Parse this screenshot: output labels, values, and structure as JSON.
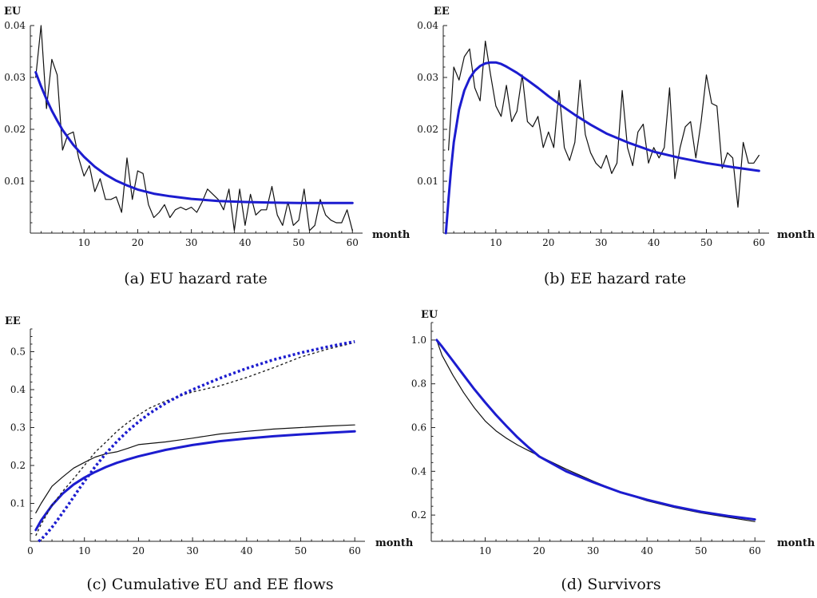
{
  "panels": [
    {
      "caption": "(a) EU hazard rate",
      "chart_data": {
        "type": "line",
        "ylabel": "EU",
        "xlabel": "month",
        "xlim": [
          0,
          61
        ],
        "ylim": [
          0,
          0.04
        ],
        "xticks": [
          10,
          20,
          30,
          40,
          50,
          60
        ],
        "yticks": [
          0.01,
          0.02,
          0.03,
          0.04
        ],
        "ytick_labels": [
          "0.01",
          "0.02",
          "0.03",
          "0.04"
        ],
        "grid": false,
        "series": [
          {
            "style": "empirical",
            "color": "#111111",
            "dash": "solid",
            "width": 1.2,
            "x": [
              1,
              2,
              3,
              4,
              5,
              6,
              7,
              8,
              9,
              10,
              11,
              12,
              13,
              14,
              15,
              16,
              17,
              18,
              19,
              20,
              21,
              22,
              23,
              24,
              25,
              26,
              27,
              28,
              29,
              30,
              31,
              32,
              33,
              34,
              35,
              36,
              37,
              38,
              39,
              40,
              41,
              42,
              43,
              44,
              45,
              46,
              47,
              48,
              49,
              50,
              51,
              52,
              53,
              54,
              55,
              56,
              57,
              58,
              59,
              60
            ],
            "y": [
              0.03,
              0.04,
              0.024,
              0.0335,
              0.0305,
              0.016,
              0.019,
              0.0195,
              0.0145,
              0.011,
              0.013,
              0.008,
              0.0105,
              0.0065,
              0.0065,
              0.007,
              0.004,
              0.0145,
              0.0065,
              0.012,
              0.0115,
              0.0055,
              0.003,
              0.004,
              0.0055,
              0.003,
              0.0045,
              0.005,
              0.0045,
              0.005,
              0.004,
              0.006,
              0.0085,
              0.0075,
              0.0065,
              0.0045,
              0.0085,
              0.0005,
              0.0085,
              0.0015,
              0.0075,
              0.0035,
              0.0045,
              0.0045,
              0.009,
              0.0035,
              0.0015,
              0.006,
              0.0015,
              0.0025,
              0.0085,
              0.0005,
              0.0015,
              0.0065,
              0.0035,
              0.0025,
              0.002,
              0.002,
              0.0045,
              0.0005
            ]
          },
          {
            "style": "model",
            "color": "#1c1ccf",
            "dash": "solid",
            "width": 3,
            "x": [
              1,
              2,
              3,
              4,
              5,
              6,
              8,
              10,
              12,
              14,
              16,
              18,
              20,
              23,
              26,
              30,
              35,
              40,
              45,
              50,
              55,
              60
            ],
            "y": [
              0.031,
              0.0283,
              0.0258,
              0.0236,
              0.0217,
              0.0199,
              0.017,
              0.0147,
              0.0128,
              0.0113,
              0.0101,
              0.0092,
              0.0084,
              0.0076,
              0.0071,
              0.0066,
              0.0062,
              0.006,
              0.0059,
              0.0058,
              0.0058,
              0.0058
            ]
          }
        ]
      }
    },
    {
      "caption": "(b) EE hazard rate",
      "chart_data": {
        "type": "line",
        "ylabel": "EE",
        "xlabel": "month",
        "xlim": [
          0,
          61
        ],
        "ylim": [
          0,
          0.04
        ],
        "xticks": [
          10,
          20,
          30,
          40,
          50,
          60
        ],
        "yticks": [
          0.01,
          0.02,
          0.03,
          0.04
        ],
        "ytick_labels": [
          "0.01",
          "0.02",
          "0.03",
          "0.04"
        ],
        "grid": false,
        "series": [
          {
            "style": "empirical",
            "color": "#111111",
            "dash": "solid",
            "width": 1.2,
            "x": [
              1,
              2,
              3,
              4,
              5,
              6,
              7,
              8,
              9,
              10,
              11,
              12,
              13,
              14,
              15,
              16,
              17,
              18,
              19,
              20,
              21,
              22,
              23,
              24,
              25,
              26,
              27,
              28,
              29,
              30,
              31,
              32,
              33,
              34,
              35,
              36,
              37,
              38,
              39,
              40,
              41,
              42,
              43,
              44,
              45,
              46,
              47,
              48,
              49,
              50,
              51,
              52,
              53,
              54,
              55,
              56,
              57,
              58,
              59,
              60
            ],
            "y": [
              0.016,
              0.032,
              0.0295,
              0.034,
              0.0355,
              0.028,
              0.0255,
              0.037,
              0.0305,
              0.0245,
              0.0225,
              0.0285,
              0.0215,
              0.0235,
              0.0305,
              0.0215,
              0.0205,
              0.0225,
              0.0165,
              0.0195,
              0.0165,
              0.0275,
              0.0165,
              0.014,
              0.0175,
              0.0295,
              0.019,
              0.0155,
              0.0135,
              0.0125,
              0.015,
              0.0115,
              0.0135,
              0.0275,
              0.0165,
              0.013,
              0.0195,
              0.021,
              0.0135,
              0.0165,
              0.0145,
              0.0165,
              0.028,
              0.0105,
              0.0165,
              0.0205,
              0.0215,
              0.0145,
              0.0215,
              0.0305,
              0.025,
              0.0245,
              0.0125,
              0.0155,
              0.0145,
              0.005,
              0.0175,
              0.0135,
              0.0135,
              0.015
            ]
          },
          {
            "style": "model",
            "color": "#1c1ccf",
            "dash": "solid",
            "width": 3,
            "x": [
              0.5,
              1,
              1.5,
              2,
              3,
              4,
              5,
              6,
              7,
              8,
              9,
              10,
              11,
              12,
              14,
              16,
              18,
              20,
              22,
              25,
              28,
              31,
              35,
              40,
              45,
              50,
              55,
              60
            ],
            "y": [
              0,
              0.0065,
              0.0125,
              0.0175,
              0.0238,
              0.0275,
              0.0298,
              0.0313,
              0.0322,
              0.0327,
              0.0329,
              0.0329,
              0.0326,
              0.0321,
              0.0309,
              0.0295,
              0.028,
              0.0264,
              0.0249,
              0.0228,
              0.0209,
              0.0192,
              0.0175,
              0.0157,
              0.0145,
              0.0135,
              0.0127,
              0.012
            ]
          }
        ]
      }
    },
    {
      "caption": "(c) Cumulative EU and EE flows",
      "chart_data": {
        "type": "line",
        "ylabel": "EE",
        "xlabel": "month",
        "xlim": [
          0,
          61
        ],
        "ylim": [
          0,
          0.56
        ],
        "xticks": [
          0,
          10,
          20,
          30,
          40,
          50,
          60
        ],
        "yticks": [
          0.1,
          0.2,
          0.3,
          0.4,
          0.5
        ],
        "ytick_labels": [
          "0.1",
          "0.2",
          "0.3",
          "0.4",
          "0.5"
        ],
        "grid": false,
        "series": [
          {
            "style": "empirical-EU",
            "color": "#111111",
            "dash": "solid",
            "width": 1.2,
            "x": [
              1,
              2,
              4,
              6,
              8,
              10,
              12,
              14,
              16,
              18,
              20,
              22,
              25,
              28,
              30,
              35,
              40,
              45,
              50,
              55,
              60
            ],
            "y": [
              0.075,
              0.1,
              0.145,
              0.17,
              0.193,
              0.208,
              0.222,
              0.231,
              0.236,
              0.245,
              0.255,
              0.258,
              0.262,
              0.268,
              0.272,
              0.283,
              0.29,
              0.296,
              0.3,
              0.304,
              0.307
            ]
          },
          {
            "style": "model-EU",
            "color": "#1c1ccf",
            "dash": "solid",
            "width": 3,
            "x": [
              1,
              2,
              4,
              6,
              8,
              10,
              12,
              14,
              16,
              18,
              20,
              25,
              30,
              35,
              40,
              45,
              50,
              55,
              60
            ],
            "y": [
              0.03,
              0.055,
              0.095,
              0.126,
              0.15,
              0.168,
              0.183,
              0.196,
              0.207,
              0.216,
              0.224,
              0.241,
              0.254,
              0.264,
              0.271,
              0.277,
              0.282,
              0.286,
              0.29
            ]
          },
          {
            "style": "empirical-EE",
            "color": "#222222",
            "dash": "3,3",
            "width": 1.4,
            "x": [
              1,
              2,
              4,
              6,
              8,
              10,
              12,
              14,
              16,
              18,
              20,
              22,
              25,
              28,
              30,
              35,
              40,
              45,
              50,
              55,
              60
            ],
            "y": [
              0.015,
              0.045,
              0.095,
              0.132,
              0.165,
              0.2,
              0.235,
              0.262,
              0.29,
              0.313,
              0.333,
              0.351,
              0.37,
              0.385,
              0.394,
              0.41,
              0.432,
              0.458,
              0.486,
              0.507,
              0.524
            ]
          },
          {
            "style": "model-EE",
            "color": "#1c1ccf",
            "dash": "3,3",
            "width": 3.5,
            "x": [
              1.5,
              2,
              3,
              4,
              5,
              6,
              7,
              8,
              9,
              10,
              12,
              14,
              16,
              18,
              20,
              22,
              25,
              28,
              30,
              35,
              40,
              45,
              50,
              55,
              60
            ],
            "y": [
              0,
              0.005,
              0.02,
              0.037,
              0.056,
              0.076,
              0.096,
              0.117,
              0.138,
              0.158,
              0.197,
              0.232,
              0.263,
              0.291,
              0.315,
              0.337,
              0.364,
              0.387,
              0.4,
              0.43,
              0.456,
              0.479,
              0.497,
              0.513,
              0.527
            ]
          }
        ]
      }
    },
    {
      "caption": "(d) Survivors",
      "chart_data": {
        "type": "line",
        "ylabel": "EU",
        "xlabel": "month",
        "xlim": [
          0,
          61
        ],
        "ylim": [
          0.08,
          1.08
        ],
        "xticks": [
          10,
          20,
          30,
          40,
          50,
          60
        ],
        "yticks": [
          0.2,
          0.4,
          0.6,
          0.8,
          1.0
        ],
        "ytick_labels": [
          "0.2",
          "0.4",
          "0.6",
          "0.8",
          "1.0"
        ],
        "grid": false,
        "series": [
          {
            "style": "empirical",
            "color": "#111111",
            "dash": "solid",
            "width": 1.2,
            "x": [
              1,
              2,
              4,
              6,
              8,
              10,
              12,
              14,
              16,
              18,
              20,
              25,
              30,
              35,
              40,
              45,
              50,
              55,
              60
            ],
            "y": [
              1.0,
              0.93,
              0.84,
              0.76,
              0.69,
              0.63,
              0.585,
              0.55,
              0.52,
              0.495,
              0.47,
              0.41,
              0.355,
              0.305,
              0.265,
              0.235,
              0.21,
              0.19,
              0.17
            ]
          },
          {
            "style": "model",
            "color": "#1c1ccf",
            "dash": "solid",
            "width": 3,
            "x": [
              1,
              2,
              4,
              6,
              8,
              10,
              12,
              14,
              16,
              18,
              20,
              25,
              30,
              35,
              40,
              45,
              50,
              55,
              60
            ],
            "y": [
              1.0,
              0.97,
              0.905,
              0.84,
              0.775,
              0.715,
              0.658,
              0.605,
              0.555,
              0.51,
              0.468,
              0.4,
              0.35,
              0.305,
              0.27,
              0.24,
              0.215,
              0.196,
              0.18
            ]
          }
        ]
      }
    }
  ]
}
